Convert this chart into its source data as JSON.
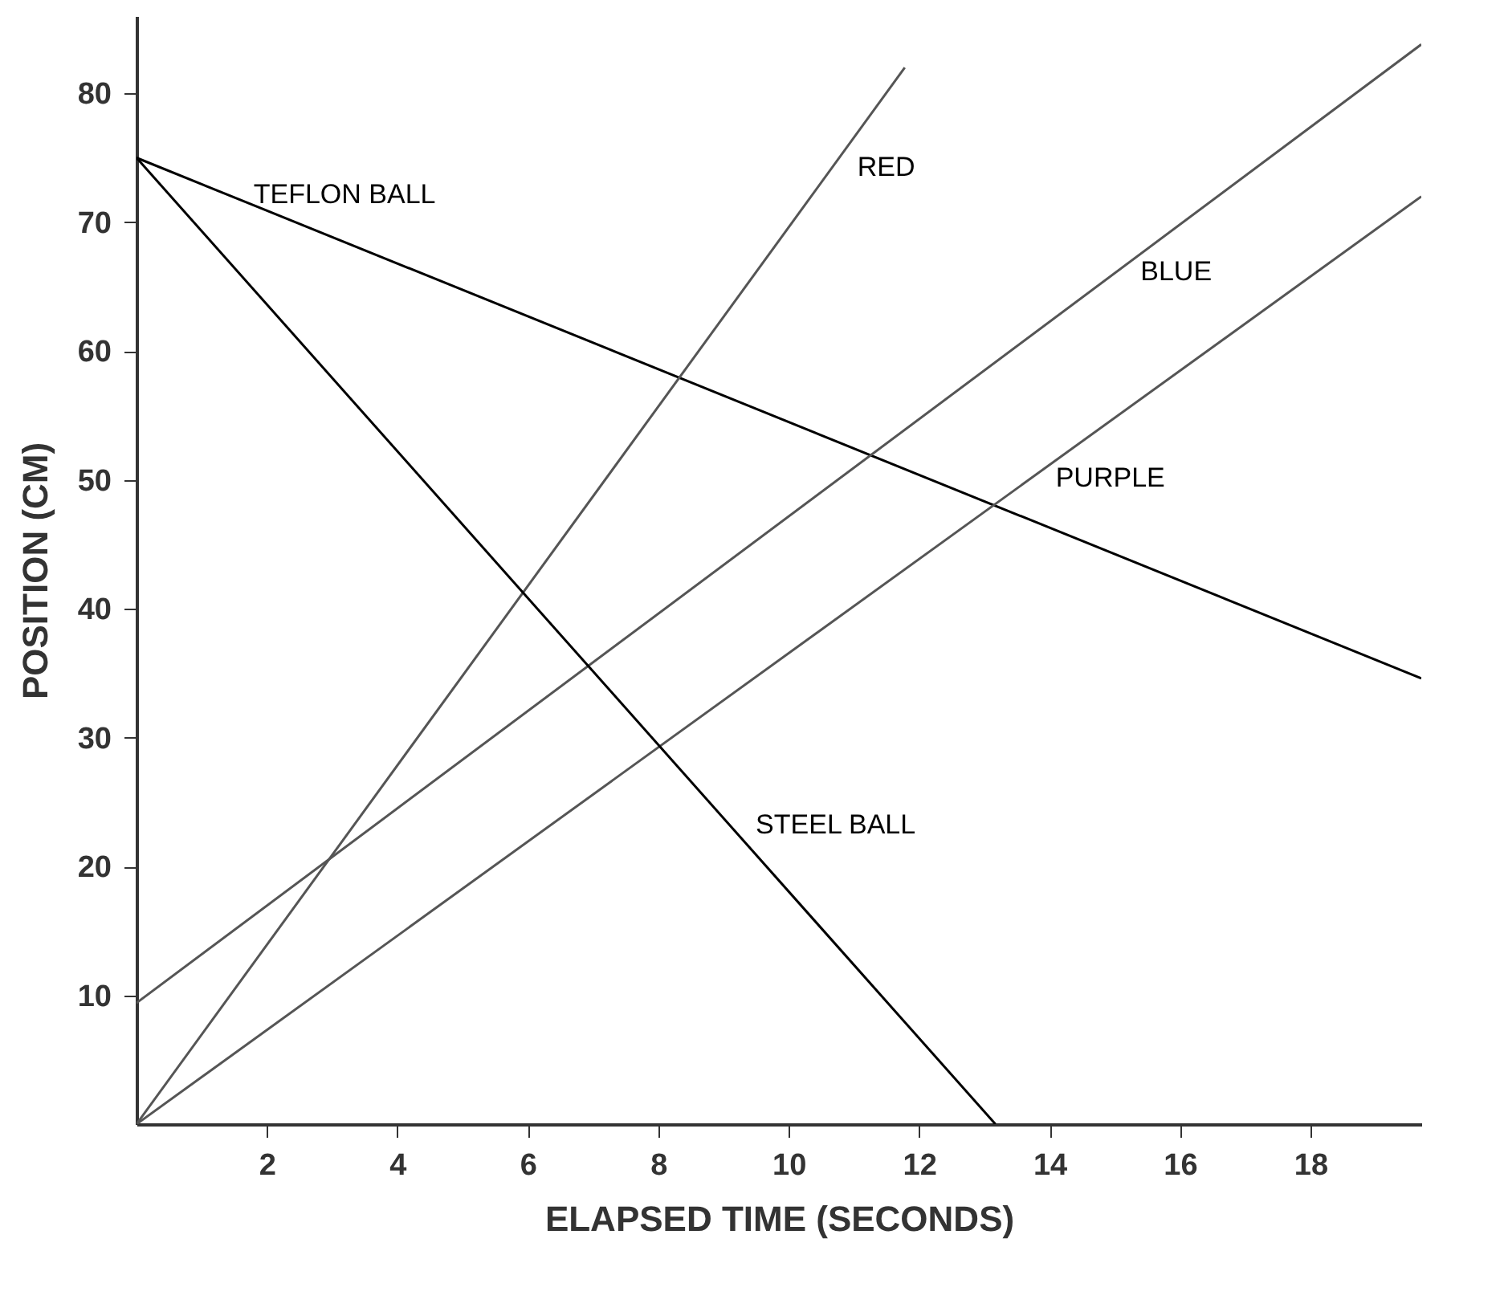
{
  "chart_data": {
    "type": "line",
    "xlabel": "ELAPSED TIME (SECONDS)",
    "ylabel": "POSITION (CM)",
    "xlim": [
      0,
      19.7
    ],
    "ylim": [
      0,
      86
    ],
    "xticks": [
      2,
      4,
      6,
      8,
      10,
      12,
      14,
      16,
      18
    ],
    "yticks": [
      10,
      20,
      30,
      40,
      50,
      60,
      70,
      80
    ],
    "grid": false,
    "marker": "none",
    "line_style": "solid",
    "series": [
      {
        "color": "#000000",
        "x": [
          0,
          19.7
        ],
        "values": [
          75,
          34.6
        ]
      },
      {
        "color": "#000000",
        "x": [
          0,
          13.17
        ],
        "values": [
          75,
          0
        ]
      },
      {
        "color": "#555555",
        "x": [
          0,
          11.78
        ],
        "values": [
          0,
          82
        ]
      },
      {
        "color": "#555555",
        "x": [
          0,
          19.7
        ],
        "values": [
          9.4,
          83.8
        ]
      },
      {
        "color": "#555555",
        "x": [
          0,
          19.7
        ],
        "values": [
          0,
          72
        ]
      }
    ],
    "annotations": [
      {
        "text": "TEFLON BALL",
        "x": 1.4,
        "y": 72.1
      },
      {
        "text": "STEEL BALL",
        "x": 9.1,
        "y": 23.2
      },
      {
        "text": "RED",
        "x": 10.66,
        "y": 74.2
      },
      {
        "text": "BLUE",
        "x": 15,
        "y": 66.1
      },
      {
        "text": "PURPLE",
        "x": 13.7,
        "y": 50.1
      }
    ]
  }
}
